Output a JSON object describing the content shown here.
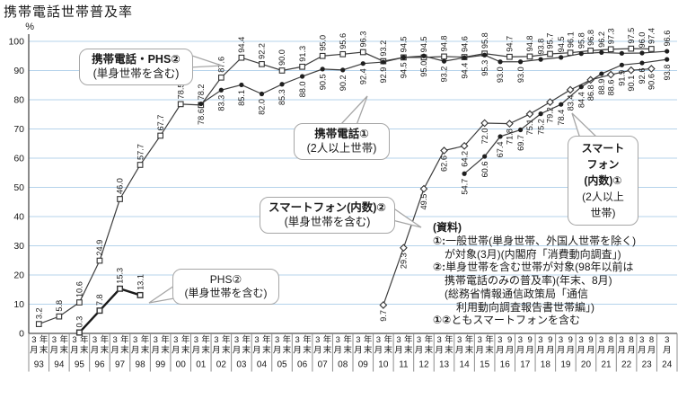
{
  "title": "携帯電話世帯普及率",
  "y_axis": {
    "unit": "%",
    "ticks": [
      "0",
      "10",
      "20",
      "30",
      "40",
      "50",
      "60",
      "70",
      "80",
      "90",
      "100"
    ]
  },
  "x_axis": {
    "columns": [
      {
        "year": "93",
        "months": [
          "3月",
          "年末"
        ]
      },
      {
        "year": "94",
        "months": [
          "3月",
          "年末"
        ]
      },
      {
        "year": "95",
        "months": [
          "3月",
          "年末"
        ]
      },
      {
        "year": "96",
        "months": [
          "3月",
          "年末"
        ]
      },
      {
        "year": "97",
        "months": [
          "3月",
          "年末"
        ]
      },
      {
        "year": "98",
        "months": [
          "3月",
          "年末"
        ]
      },
      {
        "year": "99",
        "months": [
          "3月",
          "年末"
        ]
      },
      {
        "year": "00",
        "months": [
          "3月",
          "年末"
        ]
      },
      {
        "year": "01",
        "months": [
          "3月",
          "年末"
        ]
      },
      {
        "year": "02",
        "months": [
          "3月",
          "年末"
        ]
      },
      {
        "year": "03",
        "months": [
          "3月",
          "年末"
        ]
      },
      {
        "year": "04",
        "months": [
          "3月",
          "年末"
        ]
      },
      {
        "year": "05",
        "months": [
          "3月",
          "年末"
        ]
      },
      {
        "year": "06",
        "months": [
          "3月",
          "年末"
        ]
      },
      {
        "year": "07",
        "months": [
          "3月",
          "年末"
        ]
      },
      {
        "year": "08",
        "months": [
          "3月",
          "年末"
        ]
      },
      {
        "year": "09",
        "months": [
          "3月",
          "年末"
        ]
      },
      {
        "year": "10",
        "months": [
          "3月",
          "年末"
        ]
      },
      {
        "year": "11",
        "months": [
          "3月",
          "年末"
        ]
      },
      {
        "year": "12",
        "months": [
          "3月",
          "年末"
        ]
      },
      {
        "year": "13",
        "months": [
          "3月",
          "年末"
        ]
      },
      {
        "year": "14",
        "months": [
          "3月",
          "年末"
        ]
      },
      {
        "year": "15",
        "months": [
          "3月",
          "年末"
        ]
      },
      {
        "year": "16",
        "months": [
          "3月",
          "9月"
        ]
      },
      {
        "year": "17",
        "months": [
          "3月",
          "9月"
        ]
      },
      {
        "year": "18",
        "months": [
          "3月",
          "9月"
        ]
      },
      {
        "year": "19",
        "months": [
          "3月",
          "9月"
        ]
      },
      {
        "year": "20",
        "months": [
          "3月",
          "9月"
        ]
      },
      {
        "year": "21",
        "months": [
          "3月",
          "8月"
        ]
      },
      {
        "year": "22",
        "months": [
          "3月",
          "8月"
        ]
      },
      {
        "year": "23",
        "months": [
          "3月",
          "8月"
        ]
      },
      {
        "year": "24",
        "months": [
          "3月"
        ]
      }
    ]
  },
  "chart_data": {
    "type": "line",
    "title": "携帯電話世帯普及率",
    "ylabel": "%",
    "ylim": [
      0,
      100
    ],
    "grid": true,
    "series": [
      {
        "id": "keitai_phs2",
        "name": "携帯電話・PHS②(単身世帯を含む)",
        "marker": "square",
        "timing": "late",
        "label_side": "above",
        "points": [
          [
            "93",
            3.2
          ],
          [
            "94",
            5.8
          ],
          [
            "95",
            10.6
          ],
          [
            "96",
            24.9
          ],
          [
            "97",
            46.0
          ],
          [
            "98",
            57.7
          ],
          [
            "99",
            67.7
          ],
          [
            "00",
            78.5
          ],
          [
            "01",
            78.2
          ],
          [
            "02",
            87.6
          ],
          [
            "03",
            94.4
          ],
          [
            "04",
            92.2
          ],
          [
            "05",
            90.0
          ],
          [
            "06",
            91.3
          ],
          [
            "07",
            95.0
          ],
          [
            "08",
            95.6
          ],
          [
            "09",
            96.3
          ],
          [
            "10",
            93.2
          ],
          [
            "11",
            94.5
          ],
          [
            "12",
            94.5
          ],
          [
            "13",
            94.8
          ],
          [
            "14",
            94.6
          ],
          [
            "15",
            95.8
          ],
          [
            "16",
            94.7
          ],
          [
            "17",
            94.8
          ],
          [
            "18",
            95.7
          ],
          [
            "19",
            96.1
          ],
          [
            "20",
            96.8
          ],
          [
            "21",
            97.3
          ],
          [
            "22",
            97.5
          ],
          [
            "23",
            97.4
          ]
        ]
      },
      {
        "id": "phs2",
        "name": "PHS②(単身世帯を含む)",
        "marker": "square",
        "timing": "late",
        "label_side": "above",
        "thick": true,
        "points": [
          [
            "95",
            0.3
          ],
          [
            "96",
            7.8
          ],
          [
            "97",
            15.3
          ],
          [
            "98",
            13.1
          ]
        ]
      },
      {
        "id": "keitai1",
        "name": "携帯電話①(2人以上世帯)",
        "marker": "dot",
        "timing": "march",
        "label_side": "split18",
        "points": [
          [
            "01",
            78.6
          ],
          [
            "02",
            83.3
          ],
          [
            "03",
            85.1
          ],
          [
            "04",
            82.0
          ],
          [
            "05",
            85.3
          ],
          [
            "06",
            88.0
          ],
          [
            "07",
            90.5
          ],
          [
            "08",
            90.2
          ],
          [
            "09",
            92.4
          ],
          [
            "10",
            92.9
          ],
          [
            "11",
            94.5
          ],
          [
            "12",
            95.0
          ],
          [
            "13",
            93.2
          ],
          [
            "14",
            94.4
          ],
          [
            "15",
            95.3
          ],
          [
            "16",
            93.0
          ],
          [
            "17",
            93.0
          ],
          [
            "18",
            93.8
          ],
          [
            "19",
            94.5
          ],
          [
            "20",
            95.8
          ],
          [
            "21",
            96.2
          ],
          [
            "22",
            95.9,
            ""
          ],
          [
            "23",
            96.0
          ],
          [
            "24",
            96.6
          ]
        ]
      },
      {
        "id": "smart2",
        "name": "スマートフォン(内数)②(単身世帯を含む)",
        "marker": "diamond",
        "timing": "late",
        "label_side": "below",
        "points": [
          [
            "10",
            9.7
          ],
          [
            "11",
            29.3
          ],
          [
            "12",
            49.5
          ],
          [
            "13",
            62.6
          ],
          [
            "14",
            64.2
          ],
          [
            "15",
            72.0
          ],
          [
            "16",
            71.8
          ],
          [
            "17",
            75.1
          ],
          [
            "18",
            79.2
          ],
          [
            "19",
            83.4
          ],
          [
            "20",
            86.8
          ],
          [
            "21",
            88.6
          ],
          [
            "22",
            90.1
          ],
          [
            "23",
            90.6
          ]
        ]
      },
      {
        "id": "smart1",
        "name": "スマートフォン(内数)①(2人以上世帯)",
        "marker": "dot",
        "timing": "march",
        "label_side": "below",
        "points": [
          [
            "14",
            54.7
          ],
          [
            "15",
            60.6
          ],
          [
            "16",
            67.4
          ],
          [
            "17",
            69.7
          ],
          [
            "18",
            75.2
          ],
          [
            "19",
            78.4
          ],
          [
            "20",
            84.4
          ],
          [
            "21",
            88.9
          ],
          [
            "22",
            91.9
          ],
          [
            "23",
            92.6
          ],
          [
            "24",
            93.8
          ]
        ]
      }
    ]
  },
  "callouts": [
    {
      "id": "keitai-phs2",
      "lines": [
        {
          "text": "携帯電話・PHS②",
          "bold": true
        },
        {
          "text": "(単身世帯を含む)",
          "bold": false
        }
      ]
    },
    {
      "id": "keitai1",
      "lines": [
        {
          "text": "携帯電話①",
          "bold": true
        },
        {
          "text": "(2人以上世帯)",
          "bold": false
        }
      ]
    },
    {
      "id": "smart2",
      "lines": [
        {
          "text": "スマートフォン(内数)②",
          "bold": true
        },
        {
          "text": "(単身世帯を含む)",
          "bold": false
        }
      ]
    },
    {
      "id": "phs2",
      "lines": [
        {
          "text": "PHS②",
          "bold": false
        },
        {
          "text": "(単身世帯を含む)",
          "bold": false
        }
      ]
    },
    {
      "id": "smart1",
      "lines": [
        {
          "text": "スマート",
          "bold": true
        },
        {
          "text": "フォン",
          "bold": true
        },
        {
          "text": "(内数)①",
          "bold": true
        },
        {
          "text": "(2人以上",
          "bold": false
        },
        {
          "text": "世帯)",
          "bold": false
        }
      ]
    }
  ],
  "note": {
    "lines": [
      {
        "lead": "(資料)",
        "text": "",
        "indent": 0
      },
      {
        "lead": "①:",
        "text": "一般世帯(単身世帯、外国人世帯を除く)",
        "indent": 0
      },
      {
        "lead": "",
        "text": "が対象(3月)(内閣府「消費動向調査」)",
        "indent": 1
      },
      {
        "lead": "②:",
        "text": "単身世帯を含む世帯が対象(98年以前は",
        "indent": 0
      },
      {
        "lead": "",
        "text": "携帯電話のみの普及率)(年末、8月)",
        "indent": 1
      },
      {
        "lead": "",
        "text": "(総務省情報通信政策局「通信",
        "indent": 1
      },
      {
        "lead": "",
        "text": "利用動向調査報告書世帯編」)",
        "indent": 2
      },
      {
        "lead": "①②",
        "text": "ともスマートフォンを含む",
        "indent": 0
      }
    ]
  },
  "colors": {
    "grid": "#b5d3eb",
    "line": "#3d3d3d",
    "axis": "#7f7f7f",
    "text": "#1a1a1a"
  }
}
